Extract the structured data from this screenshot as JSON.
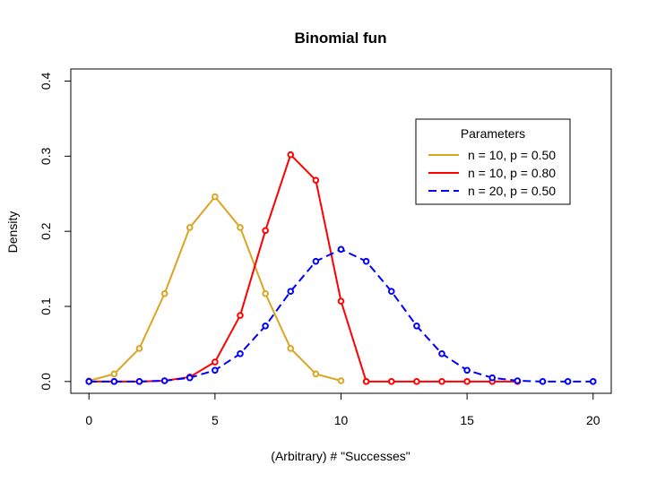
{
  "chart_data": {
    "type": "line",
    "title": "Binomial fun",
    "xlabel": "(Arbitrary) # \"Successes\"",
    "ylabel": "Density",
    "xlim": [
      0,
      20
    ],
    "ylim": [
      0,
      0.4
    ],
    "xticks": [
      "0",
      "5",
      "10",
      "15",
      "20"
    ],
    "yticks": [
      "0.0",
      "0.1",
      "0.2",
      "0.3",
      "0.4"
    ],
    "grid": false,
    "legend": {
      "title": "Parameters",
      "placement": "top-right"
    },
    "series": [
      {
        "name": "n = 10, p = 0.50",
        "color": "#DAA520",
        "line_style": "solid",
        "x": [
          0,
          1,
          2,
          3,
          4,
          5,
          6,
          7,
          8,
          9,
          10
        ],
        "values": [
          0.001,
          0.01,
          0.044,
          0.117,
          0.205,
          0.246,
          0.205,
          0.117,
          0.044,
          0.01,
          0.001
        ]
      },
      {
        "name": "n = 10, p = 0.80",
        "color": "#FF0000",
        "line_style": "solid",
        "x": [
          0,
          1,
          2,
          3,
          4,
          5,
          6,
          7,
          8,
          9,
          10,
          11,
          12,
          13,
          14,
          15,
          16,
          17
        ],
        "values": [
          0.0,
          0.0,
          0.0,
          0.001,
          0.006,
          0.026,
          0.088,
          0.201,
          0.302,
          0.268,
          0.107,
          0.0,
          0.0,
          0.0,
          0.0,
          0.0,
          0.0,
          0.0
        ]
      },
      {
        "name": "n = 20, p = 0.50",
        "color": "#0000FF",
        "line_style": "dashed",
        "x": [
          0,
          1,
          2,
          3,
          4,
          5,
          6,
          7,
          8,
          9,
          10,
          11,
          12,
          13,
          14,
          15,
          16,
          17,
          18,
          19,
          20
        ],
        "values": [
          0.0,
          0.0,
          0.0,
          0.001,
          0.005,
          0.015,
          0.037,
          0.074,
          0.12,
          0.16,
          0.176,
          0.16,
          0.12,
          0.074,
          0.037,
          0.015,
          0.005,
          0.001,
          0.0,
          0.0,
          0.0
        ]
      }
    ]
  }
}
